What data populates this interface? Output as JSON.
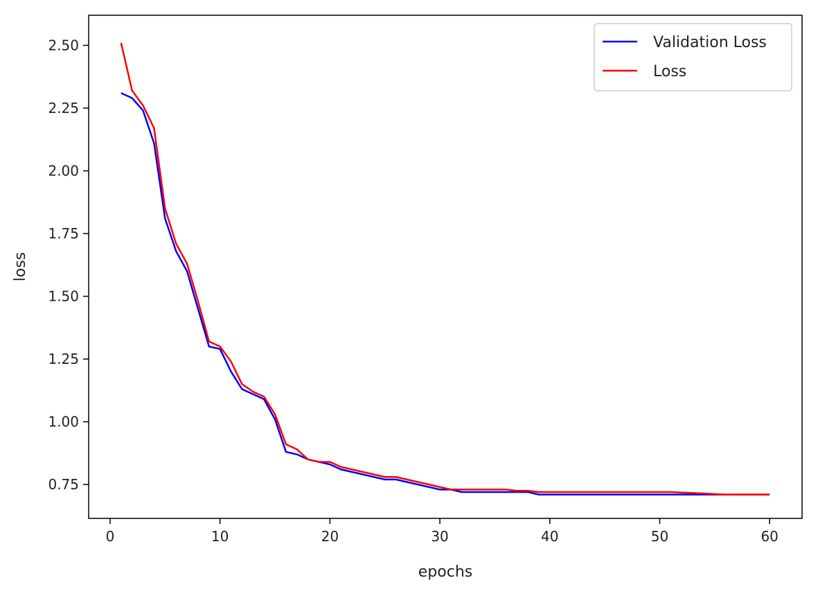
{
  "chart_data": {
    "type": "line",
    "title": "",
    "xlabel": "epochs",
    "ylabel": "loss",
    "xlim": [
      -1.95,
      62.95
    ],
    "ylim": [
      0.615,
      2.62
    ],
    "xticks": [
      0,
      10,
      20,
      30,
      40,
      50,
      60
    ],
    "xtick_labels": [
      "0",
      "10",
      "20",
      "30",
      "40",
      "50",
      "60"
    ],
    "yticks": [
      0.75,
      1.0,
      1.25,
      1.5,
      1.75,
      2.0,
      2.25,
      2.5
    ],
    "ytick_labels": [
      "0.75",
      "1.00",
      "1.25",
      "1.50",
      "1.75",
      "2.00",
      "2.25",
      "2.50"
    ],
    "grid": false,
    "legend_position": "top-right",
    "x": [
      1,
      2,
      3,
      4,
      5,
      6,
      7,
      8,
      9,
      10,
      11,
      12,
      13,
      14,
      15,
      16,
      17,
      18,
      19,
      20,
      21,
      22,
      23,
      24,
      25,
      26,
      27,
      28,
      29,
      30,
      31,
      32,
      33,
      34,
      35,
      36,
      37,
      38,
      39,
      40,
      41,
      42,
      43,
      44,
      45,
      46,
      47,
      48,
      49,
      50,
      51,
      52,
      53,
      54,
      55,
      56,
      57,
      58,
      59,
      60
    ],
    "series": [
      {
        "name": "Validation Loss",
        "color": "#0000ff",
        "values": [
          2.31,
          2.29,
          2.24,
          2.11,
          1.81,
          1.68,
          1.6,
          1.45,
          1.3,
          1.29,
          1.2,
          1.13,
          1.11,
          1.09,
          1.01,
          0.88,
          0.87,
          0.85,
          0.84,
          0.83,
          0.81,
          0.8,
          0.79,
          0.78,
          0.77,
          0.77,
          0.76,
          0.75,
          0.74,
          0.73,
          0.73,
          0.72,
          0.72,
          0.72,
          0.72,
          0.72,
          0.72,
          0.72,
          0.71,
          0.71,
          0.71,
          0.71,
          0.71,
          0.71,
          0.71,
          0.71,
          0.71,
          0.71,
          0.71,
          0.71,
          0.71,
          0.71,
          0.71,
          0.71,
          0.71,
          0.71,
          0.71,
          0.71,
          0.71,
          0.71
        ]
      },
      {
        "name": "Loss",
        "color": "#ff0000",
        "values": [
          2.51,
          2.32,
          2.26,
          2.17,
          1.85,
          1.71,
          1.63,
          1.48,
          1.32,
          1.3,
          1.24,
          1.15,
          1.12,
          1.1,
          1.03,
          0.91,
          0.89,
          0.85,
          0.84,
          0.84,
          0.82,
          0.81,
          0.8,
          0.79,
          0.78,
          0.78,
          0.77,
          0.76,
          0.75,
          0.74,
          0.73,
          0.73,
          0.73,
          0.73,
          0.73,
          0.73,
          0.725,
          0.725,
          0.72,
          0.72,
          0.72,
          0.72,
          0.72,
          0.72,
          0.72,
          0.72,
          0.72,
          0.72,
          0.72,
          0.72,
          0.72,
          0.718,
          0.716,
          0.714,
          0.712,
          0.71,
          0.71,
          0.71,
          0.71,
          0.71
        ]
      }
    ]
  }
}
